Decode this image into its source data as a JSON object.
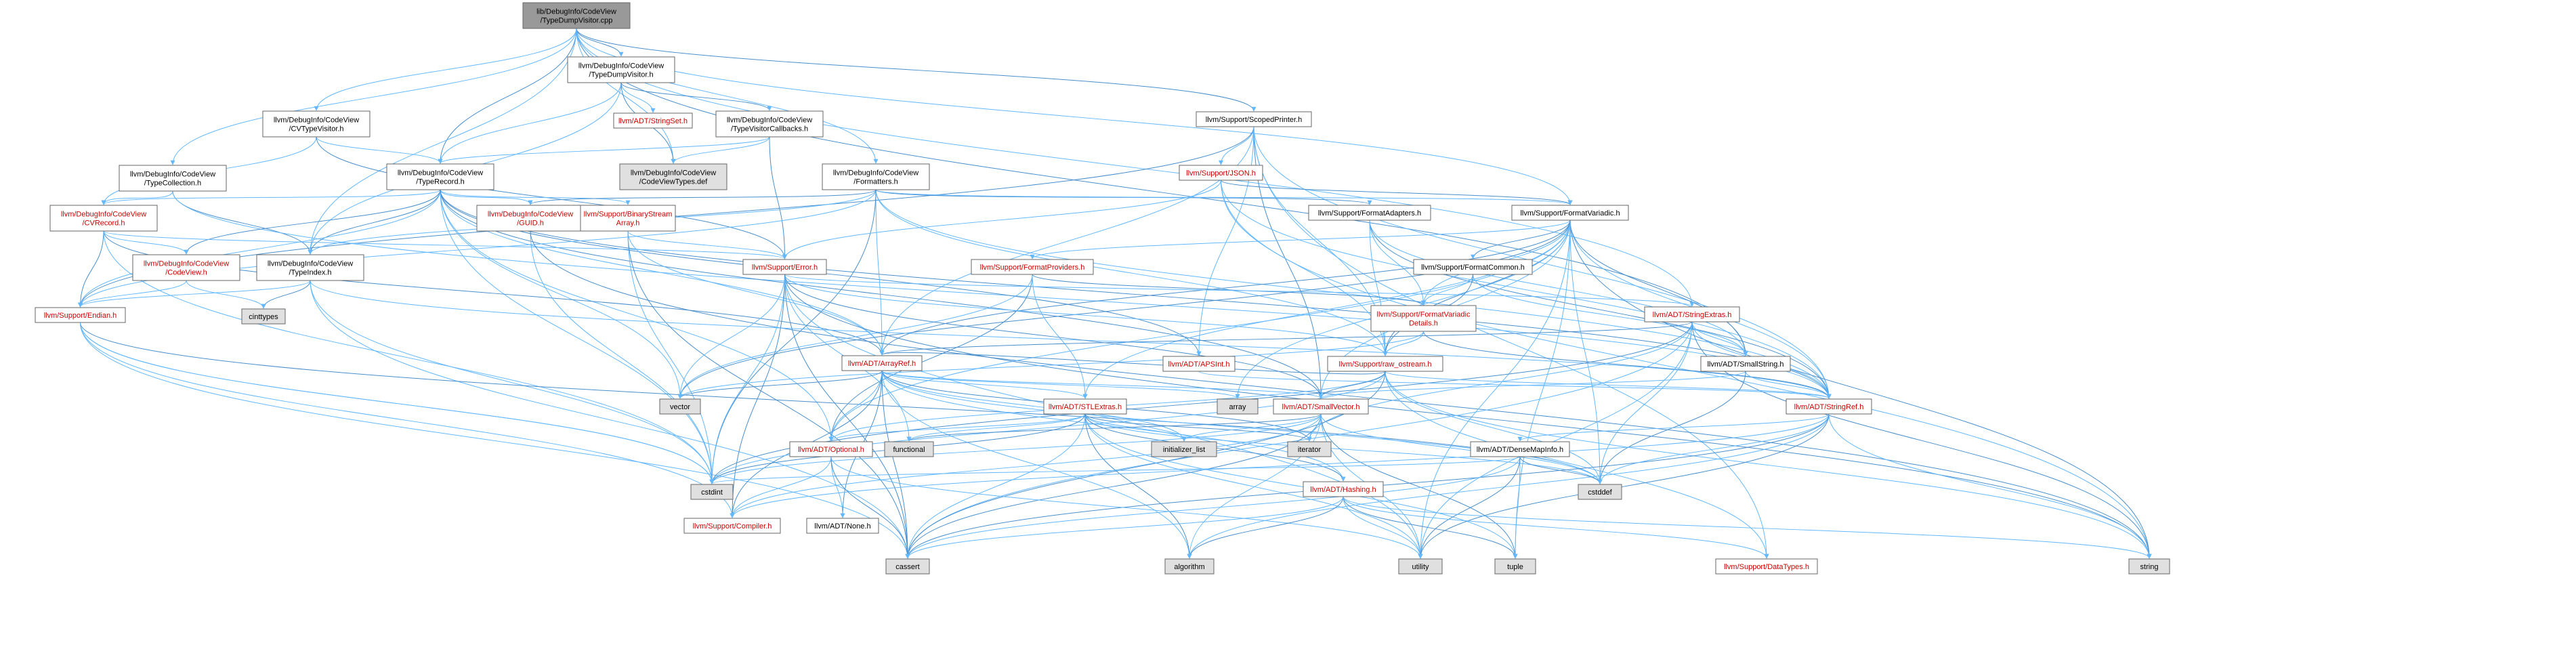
{
  "colors": {
    "root_fill": "#999999",
    "node_fill": "#ffffff",
    "system_fill": "#e0e0e0",
    "red_text": "#cc0000",
    "edge": "#63b8ff",
    "edge_dark": "#4a8fcc"
  },
  "nodes": [
    {
      "id": "root",
      "lines": [
        "lib/DebugInfo/CodeView",
        "/TypeDumpVisitor.cpp"
      ],
      "kind": "root"
    },
    {
      "id": "tdv_h",
      "lines": [
        "llvm/DebugInfo/CodeView",
        "/TypeDumpVisitor.h"
      ],
      "kind": "normal"
    },
    {
      "id": "cvtypevisitor",
      "lines": [
        "llvm/DebugInfo/CodeView",
        "/CVTypeVisitor.h"
      ],
      "kind": "normal"
    },
    {
      "id": "stringset",
      "lines": [
        "llvm/ADT/StringSet.h"
      ],
      "kind": "red"
    },
    {
      "id": "tvc",
      "lines": [
        "llvm/DebugInfo/CodeView",
        "/TypeVisitorCallbacks.h"
      ],
      "kind": "normal"
    },
    {
      "id": "scopedprinter",
      "lines": [
        "llvm/Support/ScopedPrinter.h"
      ],
      "kind": "normal"
    },
    {
      "id": "typecollection",
      "lines": [
        "llvm/DebugInfo/CodeView",
        "/TypeCollection.h"
      ],
      "kind": "normal"
    },
    {
      "id": "typerecord",
      "lines": [
        "llvm/DebugInfo/CodeView",
        "/TypeRecord.h"
      ],
      "kind": "normal"
    },
    {
      "id": "cvtypesdef",
      "lines": [
        "llvm/DebugInfo/CodeView",
        "/CodeViewTypes.def"
      ],
      "kind": "system"
    },
    {
      "id": "formatters",
      "lines": [
        "llvm/DebugInfo/CodeView",
        "/Formatters.h"
      ],
      "kind": "normal"
    },
    {
      "id": "json",
      "lines": [
        "llvm/Support/JSON.h"
      ],
      "kind": "red"
    },
    {
      "id": "cvrecord",
      "lines": [
        "llvm/DebugInfo/CodeView",
        "/CVRecord.h"
      ],
      "kind": "red"
    },
    {
      "id": "guid",
      "lines": [
        "llvm/DebugInfo/CodeView",
        "/GUID.h"
      ],
      "kind": "red"
    },
    {
      "id": "binstreamarray",
      "lines": [
        "llvm/Support/BinaryStream",
        "Array.h"
      ],
      "kind": "red"
    },
    {
      "id": "formatadapters",
      "lines": [
        "llvm/Support/FormatAdapters.h"
      ],
      "kind": "normal"
    },
    {
      "id": "formatvariadic",
      "lines": [
        "llvm/Support/FormatVariadic.h"
      ],
      "kind": "normal"
    },
    {
      "id": "codeview_h",
      "lines": [
        "llvm/DebugInfo/CodeView",
        "/CodeView.h"
      ],
      "kind": "red"
    },
    {
      "id": "typeindex",
      "lines": [
        "llvm/DebugInfo/CodeView",
        "/TypeIndex.h"
      ],
      "kind": "normal"
    },
    {
      "id": "formatproviders",
      "lines": [
        "llvm/Support/FormatProviders.h"
      ],
      "kind": "red"
    },
    {
      "id": "error",
      "lines": [
        "llvm/Support/Error.h"
      ],
      "kind": "red"
    },
    {
      "id": "formatcommon",
      "lines": [
        "llvm/Support/FormatCommon.h"
      ],
      "kind": "normal"
    },
    {
      "id": "endian",
      "lines": [
        "llvm/Support/Endian.h"
      ],
      "kind": "red"
    },
    {
      "id": "cinttypes",
      "lines": [
        "cinttypes"
      ],
      "kind": "system"
    },
    {
      "id": "fvdetails",
      "lines": [
        "llvm/Support/FormatVariadic",
        "Details.h"
      ],
      "kind": "red"
    },
    {
      "id": "stringextras",
      "lines": [
        "llvm/ADT/StringExtras.h"
      ],
      "kind": "red"
    },
    {
      "id": "arrayref",
      "lines": [
        "llvm/ADT/ArrayRef.h"
      ],
      "kind": "red"
    },
    {
      "id": "apsint",
      "lines": [
        "llvm/ADT/APSInt.h"
      ],
      "kind": "red"
    },
    {
      "id": "raw_ostream",
      "lines": [
        "llvm/Support/raw_ostream.h"
      ],
      "kind": "red"
    },
    {
      "id": "smallstring",
      "lines": [
        "llvm/ADT/SmallString.h"
      ],
      "kind": "normal"
    },
    {
      "id": "vector",
      "lines": [
        "vector"
      ],
      "kind": "system"
    },
    {
      "id": "array",
      "lines": [
        "array"
      ],
      "kind": "system"
    },
    {
      "id": "stlextras",
      "lines": [
        "llvm/ADT/STLExtras.h"
      ],
      "kind": "red"
    },
    {
      "id": "smallvector",
      "lines": [
        "llvm/ADT/SmallVector.h"
      ],
      "kind": "red"
    },
    {
      "id": "stringref",
      "lines": [
        "llvm/ADT/StringRef.h"
      ],
      "kind": "red"
    },
    {
      "id": "functional",
      "lines": [
        "functional"
      ],
      "kind": "system"
    },
    {
      "id": "initlist",
      "lines": [
        "initializer_list"
      ],
      "kind": "system"
    },
    {
      "id": "iterator",
      "lines": [
        "iterator"
      ],
      "kind": "system"
    },
    {
      "id": "densemapinfo",
      "lines": [
        "llvm/ADT/DenseMapInfo.h"
      ],
      "kind": "normal"
    },
    {
      "id": "optional",
      "lines": [
        "llvm/ADT/Optional.h"
      ],
      "kind": "red"
    },
    {
      "id": "cstdint",
      "lines": [
        "cstdint"
      ],
      "kind": "system"
    },
    {
      "id": "cstddef",
      "lines": [
        "cstddef"
      ],
      "kind": "system"
    },
    {
      "id": "compiler",
      "lines": [
        "llvm/Support/Compiler.h"
      ],
      "kind": "red"
    },
    {
      "id": "none",
      "lines": [
        "llvm/ADT/None.h"
      ],
      "kind": "normal"
    },
    {
      "id": "hashing",
      "lines": [
        "llvm/ADT/Hashing.h"
      ],
      "kind": "red"
    },
    {
      "id": "cassert",
      "lines": [
        "cassert"
      ],
      "kind": "system"
    },
    {
      "id": "algorithm",
      "lines": [
        "algorithm"
      ],
      "kind": "system"
    },
    {
      "id": "utility",
      "lines": [
        "utility"
      ],
      "kind": "system"
    },
    {
      "id": "tuple",
      "lines": [
        "tuple"
      ],
      "kind": "system"
    },
    {
      "id": "datatypes",
      "lines": [
        "llvm/Support/DataTypes.h"
      ],
      "kind": "red"
    },
    {
      "id": "string",
      "lines": [
        "string"
      ],
      "kind": "system"
    }
  ],
  "edges": [
    [
      "root",
      "tdv_h"
    ],
    [
      "root",
      "cvtypevisitor"
    ],
    [
      "root",
      "typecollection"
    ],
    [
      "root",
      "typerecord"
    ],
    [
      "root",
      "cvtypesdef"
    ],
    [
      "root",
      "formatters"
    ],
    [
      "root",
      "scopedprinter"
    ],
    [
      "root",
      "typeindex"
    ],
    [
      "root",
      "formatvariadic"
    ],
    [
      "root",
      "smallstring"
    ],
    [
      "root",
      "stringextras"
    ],
    [
      "tdv_h",
      "stringset"
    ],
    [
      "tdv_h",
      "tvc"
    ],
    [
      "tdv_h",
      "typerecord"
    ],
    [
      "tdv_h",
      "typeindex"
    ],
    [
      "tdv_h",
      "cvtypesdef"
    ],
    [
      "cvtypevisitor",
      "cvrecord"
    ],
    [
      "cvtypevisitor",
      "typerecord"
    ],
    [
      "cvtypevisitor",
      "error"
    ],
    [
      "tvc",
      "typerecord"
    ],
    [
      "tvc",
      "cvtypesdef"
    ],
    [
      "tvc",
      "error"
    ],
    [
      "scopedprinter",
      "apsint"
    ],
    [
      "scopedprinter",
      "arrayref"
    ],
    [
      "scopedprinter",
      "smallvector"
    ],
    [
      "scopedprinter",
      "stringref"
    ],
    [
      "scopedprinter",
      "json"
    ],
    [
      "scopedprinter",
      "endian"
    ],
    [
      "scopedprinter",
      "raw_ostream"
    ],
    [
      "scopedprinter",
      "datatypes"
    ],
    [
      "typecollection",
      "typeindex"
    ],
    [
      "typecollection",
      "cvrecord"
    ],
    [
      "typecollection",
      "stringref"
    ],
    [
      "typerecord",
      "apsint"
    ],
    [
      "typerecord",
      "arrayref"
    ],
    [
      "typerecord",
      "optional"
    ],
    [
      "typerecord",
      "smallvector"
    ],
    [
      "typerecord",
      "cvrecord"
    ],
    [
      "typerecord",
      "guid"
    ],
    [
      "typerecord",
      "typeindex"
    ],
    [
      "typerecord",
      "binstreamarray"
    ],
    [
      "typerecord",
      "endian"
    ],
    [
      "typerecord",
      "codeview_h"
    ],
    [
      "typerecord",
      "cstdint"
    ],
    [
      "typerecord",
      "vector"
    ],
    [
      "typerecord",
      "stringref"
    ],
    [
      "formatters",
      "arrayref"
    ],
    [
      "formatters",
      "stringref"
    ],
    [
      "formatters",
      "guid"
    ],
    [
      "formatters",
      "typeindex"
    ],
    [
      "formatters",
      "endian"
    ],
    [
      "formatters",
      "formatadapters"
    ],
    [
      "formatters",
      "formatvariadic"
    ],
    [
      "formatters",
      "raw_ostream"
    ],
    [
      "formatters",
      "cstdint"
    ],
    [
      "json",
      "stringref"
    ],
    [
      "json",
      "error"
    ],
    [
      "json",
      "formatvariadic"
    ],
    [
      "json",
      "raw_ostream"
    ],
    [
      "json",
      "string"
    ],
    [
      "cvrecord",
      "arrayref"
    ],
    [
      "cvrecord",
      "codeview_h"
    ],
    [
      "cvrecord",
      "error"
    ],
    [
      "cvrecord",
      "endian"
    ],
    [
      "cvrecord",
      "cstdint"
    ],
    [
      "guid",
      "cstdint"
    ],
    [
      "guid",
      "string"
    ],
    [
      "binstreamarray",
      "arrayref"
    ],
    [
      "binstreamarray",
      "error"
    ],
    [
      "binstreamarray",
      "cassert"
    ],
    [
      "binstreamarray",
      "cstdint"
    ],
    [
      "formatadapters",
      "smallstring"
    ],
    [
      "formatadapters",
      "stringref"
    ],
    [
      "formatadapters",
      "fvdetails"
    ],
    [
      "formatadapters",
      "raw_ostream"
    ],
    [
      "formatvariadic",
      "arrayref"
    ],
    [
      "formatvariadic",
      "optional"
    ],
    [
      "formatvariadic",
      "stlextras"
    ],
    [
      "formatvariadic",
      "smallstring"
    ],
    [
      "formatvariadic",
      "smallvector"
    ],
    [
      "formatvariadic",
      "stringref"
    ],
    [
      "formatvariadic",
      "formatcommon"
    ],
    [
      "formatvariadic",
      "formatproviders"
    ],
    [
      "formatvariadic",
      "fvdetails"
    ],
    [
      "formatvariadic",
      "raw_ostream"
    ],
    [
      "formatvariadic",
      "array"
    ],
    [
      "formatvariadic",
      "cstddef"
    ],
    [
      "formatvariadic",
      "string"
    ],
    [
      "formatvariadic",
      "tuple"
    ],
    [
      "formatvariadic",
      "utility"
    ],
    [
      "formatvariadic",
      "vector"
    ],
    [
      "codeview_h",
      "endian"
    ],
    [
      "codeview_h",
      "cinttypes"
    ],
    [
      "codeview_h",
      "type_traits_dummy"
    ],
    [
      "typeindex",
      "endian"
    ],
    [
      "typeindex",
      "cassert"
    ],
    [
      "typeindex",
      "cinttypes"
    ],
    [
      "typeindex",
      "stringref"
    ],
    [
      "typeindex",
      "cstdint"
    ],
    [
      "formatproviders",
      "optional"
    ],
    [
      "formatproviders",
      "stlextras"
    ],
    [
      "formatproviders",
      "stringswitch_dummy"
    ],
    [
      "formatproviders",
      "fvdetails"
    ],
    [
      "formatproviders",
      "vector"
    ],
    [
      "error",
      "stringextras"
    ],
    [
      "error",
      "compiler"
    ],
    [
      "error",
      "raw_ostream"
    ],
    [
      "error",
      "abi_dummy"
    ],
    [
      "error",
      "cassert"
    ],
    [
      "error",
      "cstdint"
    ],
    [
      "error",
      "functional"
    ],
    [
      "error",
      "string"
    ],
    [
      "error",
      "utility"
    ],
    [
      "error",
      "vector"
    ],
    [
      "error",
      "smallvector"
    ],
    [
      "formatcommon",
      "smallstring"
    ],
    [
      "formatcommon",
      "fvdetails"
    ],
    [
      "formatcommon",
      "raw_ostream"
    ],
    [
      "endian",
      "compiler"
    ],
    [
      "endian",
      "cassert"
    ],
    [
      "endian",
      "cstddef"
    ],
    [
      "endian",
      "cstdint"
    ],
    [
      "endian",
      "cstdint"
    ],
    [
      "fvdetails",
      "stringref"
    ],
    [
      "fvdetails",
      "raw_ostream"
    ],
    [
      "fvdetails",
      "vector"
    ],
    [
      "stringextras",
      "arrayref"
    ],
    [
      "stringextras",
      "smallstring"
    ],
    [
      "stringextras",
      "stringref"
    ],
    [
      "stringextras",
      "twine_dummy"
    ],
    [
      "stringextras",
      "cassert"
    ],
    [
      "stringextras",
      "cstddef"
    ],
    [
      "stringextras",
      "cstdint"
    ],
    [
      "stringextras",
      "cstring_dummy"
    ],
    [
      "stringextras",
      "iterator"
    ],
    [
      "stringextras",
      "string"
    ],
    [
      "stringextras",
      "utility"
    ],
    [
      "arrayref",
      "hashing"
    ],
    [
      "arrayref",
      "none"
    ],
    [
      "arrayref",
      "smallvector"
    ],
    [
      "arrayref",
      "stlextras"
    ],
    [
      "arrayref",
      "compiler"
    ],
    [
      "arrayref",
      "algorithm"
    ],
    [
      "arrayref",
      "array"
    ],
    [
      "arrayref",
      "cassert"
    ],
    [
      "arrayref",
      "cstddef"
    ],
    [
      "arrayref",
      "initlist"
    ],
    [
      "arrayref",
      "iterator"
    ],
    [
      "arrayref",
      "memory_dummy"
    ],
    [
      "arrayref",
      "type_traits_dummy"
    ],
    [
      "arrayref",
      "vector"
    ],
    [
      "arrayref",
      "optional"
    ],
    [
      "apsint",
      "stringref"
    ],
    [
      "raw_ostream",
      "arrayref"
    ],
    [
      "raw_ostream",
      "stringref"
    ],
    [
      "raw_ostream",
      "datatypes"
    ],
    [
      "raw_ostream",
      "cassert"
    ],
    [
      "raw_ostream",
      "cstddef"
    ],
    [
      "raw_ostream",
      "cstdint"
    ],
    [
      "raw_ostream",
      "cstring_dummy"
    ],
    [
      "raw_ostream",
      "optional"
    ],
    [
      "raw_ostream",
      "string"
    ],
    [
      "raw_ostream",
      "smallvector"
    ],
    [
      "smallstring",
      "smallvector"
    ],
    [
      "smallstring",
      "stringref"
    ],
    [
      "smallstring",
      "cstddef"
    ],
    [
      "stlextras",
      "optional"
    ],
    [
      "stlextras",
      "stlforward_dummy"
    ],
    [
      "stlextras",
      "algorithm"
    ],
    [
      "stlextras",
      "cassert"
    ],
    [
      "stlextras",
      "cstddef"
    ],
    [
      "stlextras",
      "cstdint"
    ],
    [
      "stlextras",
      "functional"
    ],
    [
      "stlextras",
      "initlist"
    ],
    [
      "stlextras",
      "iterator"
    ],
    [
      "stlextras",
      "tuple"
    ],
    [
      "stlextras",
      "utility"
    ],
    [
      "stlextras",
      "hashing"
    ],
    [
      "smallvector",
      "compiler"
    ],
    [
      "smallvector",
      "algorithm"
    ],
    [
      "smallvector",
      "cassert"
    ],
    [
      "smallvector",
      "cstddef"
    ],
    [
      "smallvector",
      "cstdint"
    ],
    [
      "smallvector",
      "functional"
    ],
    [
      "smallvector",
      "initlist"
    ],
    [
      "smallvector",
      "iterator"
    ],
    [
      "smallvector",
      "tuple"
    ],
    [
      "smallvector",
      "utility"
    ],
    [
      "stringref",
      "stlfunctionalextras_dummy"
    ],
    [
      "stringref",
      "iterator_range_dummy"
    ],
    [
      "stringref",
      "compiler"
    ],
    [
      "stringref",
      "algorithm"
    ],
    [
      "stringref",
      "cassert"
    ],
    [
      "stringref",
      "cstddef"
    ],
    [
      "stringref",
      "string"
    ],
    [
      "stringref",
      "utility"
    ],
    [
      "stringref",
      "densemapinfo"
    ],
    [
      "densemapinfo",
      "cassert"
    ],
    [
      "densemapinfo",
      "cstddef"
    ],
    [
      "densemapinfo",
      "cstdint"
    ],
    [
      "densemapinfo",
      "tuple"
    ],
    [
      "densemapinfo",
      "utility"
    ],
    [
      "optional",
      "none"
    ],
    [
      "optional",
      "compiler"
    ],
    [
      "optional",
      "cassert"
    ],
    [
      "optional",
      "utility"
    ],
    [
      "hashing",
      "datatypes"
    ],
    [
      "hashing",
      "algorithm"
    ],
    [
      "hashing",
      "cassert"
    ],
    [
      "hashing",
      "string"
    ],
    [
      "hashing",
      "tuple"
    ],
    [
      "hashing",
      "utility"
    ]
  ]
}
